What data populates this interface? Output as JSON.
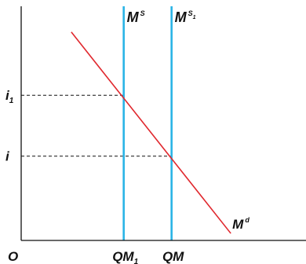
{
  "chart_data": {
    "type": "line",
    "title": "",
    "xlabel": "",
    "ylabel": "",
    "origin_label": "O",
    "y_levels": [
      {
        "main": "i",
        "sub": "1",
        "value": 0.62
      },
      {
        "main": "i",
        "sub": "",
        "value": 0.36
      }
    ],
    "x_levels": [
      {
        "main": "QM",
        "sub": "1",
        "value": 0.45
      },
      {
        "main": "QM",
        "sub": "",
        "value": 0.66
      }
    ],
    "series": [
      {
        "name": "Md",
        "label_main": "M",
        "label_sup": "d",
        "kind": "demand",
        "color": "#e0282e",
        "points": [
          [
            0.22,
            0.89
          ],
          [
            0.92,
            0.03
          ]
        ]
      },
      {
        "name": "MS",
        "label_main": "M",
        "label_sup": "S",
        "label_sub": "",
        "kind": "vertical",
        "color": "#2ab4e6",
        "x": 0.45
      },
      {
        "name": "MS1",
        "label_main": "M",
        "label_sup": "S",
        "label_sub": "1",
        "kind": "vertical",
        "color": "#2ab4e6",
        "x": 0.66
      }
    ],
    "xlim": [
      0,
      1.25
    ],
    "ylim": [
      0,
      1
    ],
    "grid": false,
    "legend": "none",
    "axis_color": "#111111",
    "guide_color": "#111111"
  }
}
